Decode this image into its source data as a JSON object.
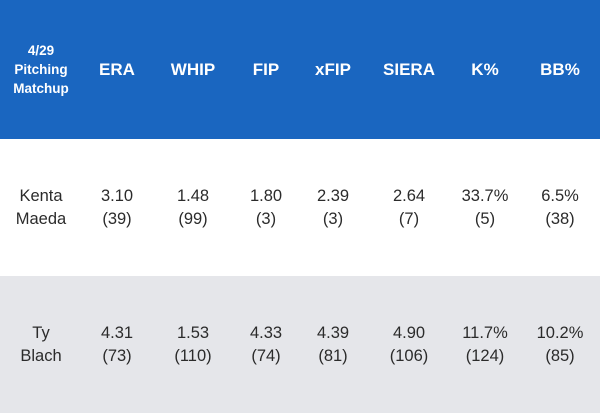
{
  "header": {
    "matchup_line1": "4/29",
    "matchup_line2": "Pitching",
    "matchup_line3": "Matchup",
    "columns": [
      "ERA",
      "WHIP",
      "FIP",
      "xFIP",
      "SIERA",
      "K%",
      "BB%"
    ]
  },
  "rows": [
    {
      "name_first": "Kenta",
      "name_last": "Maeda",
      "stats": [
        {
          "value": "3.10",
          "rank": "(39)"
        },
        {
          "value": "1.48",
          "rank": "(99)"
        },
        {
          "value": "1.80",
          "rank": "(3)"
        },
        {
          "value": "2.39",
          "rank": "(3)"
        },
        {
          "value": "2.64",
          "rank": "(7)"
        },
        {
          "value": "33.7%",
          "rank": "(5)"
        },
        {
          "value": "6.5%",
          "rank": "(38)"
        }
      ]
    },
    {
      "name_first": "Ty",
      "name_last": "Blach",
      "stats": [
        {
          "value": "4.31",
          "rank": "(73)"
        },
        {
          "value": "1.53",
          "rank": "(110)"
        },
        {
          "value": "4.33",
          "rank": "(74)"
        },
        {
          "value": "4.39",
          "rank": "(81)"
        },
        {
          "value": "4.90",
          "rank": "(106)"
        },
        {
          "value": "11.7%",
          "rank": "(124)"
        },
        {
          "value": "10.2%",
          "rank": "(85)"
        }
      ]
    }
  ],
  "colors": {
    "header_bg": "#1a66c0",
    "header_text": "#ffffff",
    "row_alt_bg": "#e5e6ea",
    "body_text": "#2b2b2b"
  }
}
